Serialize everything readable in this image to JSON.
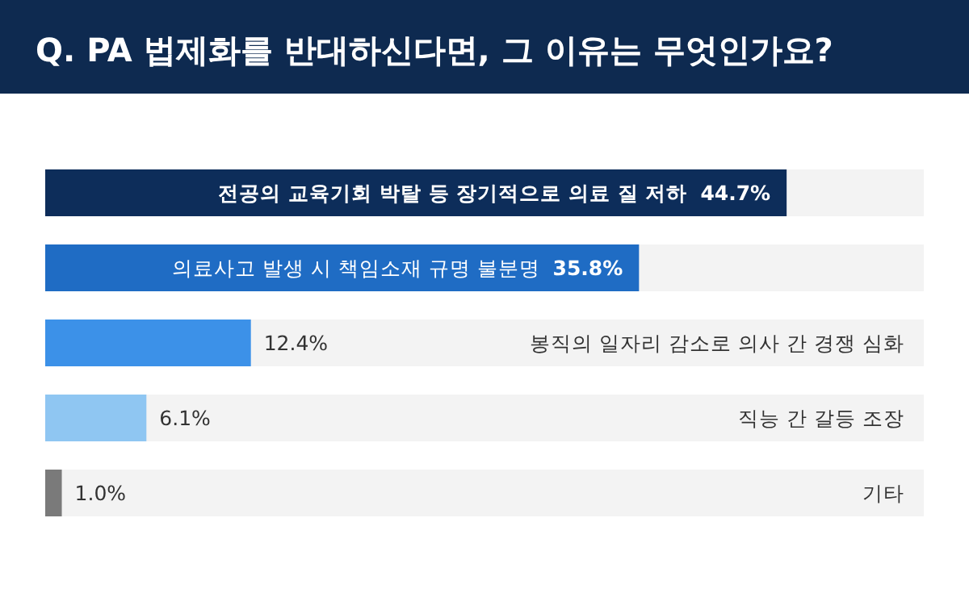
{
  "chart_data": {
    "type": "bar",
    "orientation": "horizontal",
    "title": "Q. PA 법제화를 반대하신다면, 그 이유는 무엇인가요?",
    "categories": [
      "전공의 교육기회 박탈 등 장기적으로 의료 질 저하",
      "의료사고 발생 시 책임소재 규명 불분명",
      "봉직의 일자리 감소로 의사 간 경쟁 심화",
      "직능 간 갈등 조장",
      "기타"
    ],
    "values": [
      44.7,
      35.8,
      12.4,
      6.1,
      1.0
    ],
    "value_labels": [
      "44.7%",
      "35.8%",
      "12.4%",
      "6.1%",
      "1.0%"
    ],
    "colors": [
      "#0d2d5a",
      "#1f6cc4",
      "#3c91e8",
      "#8fc6f2",
      "#7a7a7a"
    ]
  }
}
